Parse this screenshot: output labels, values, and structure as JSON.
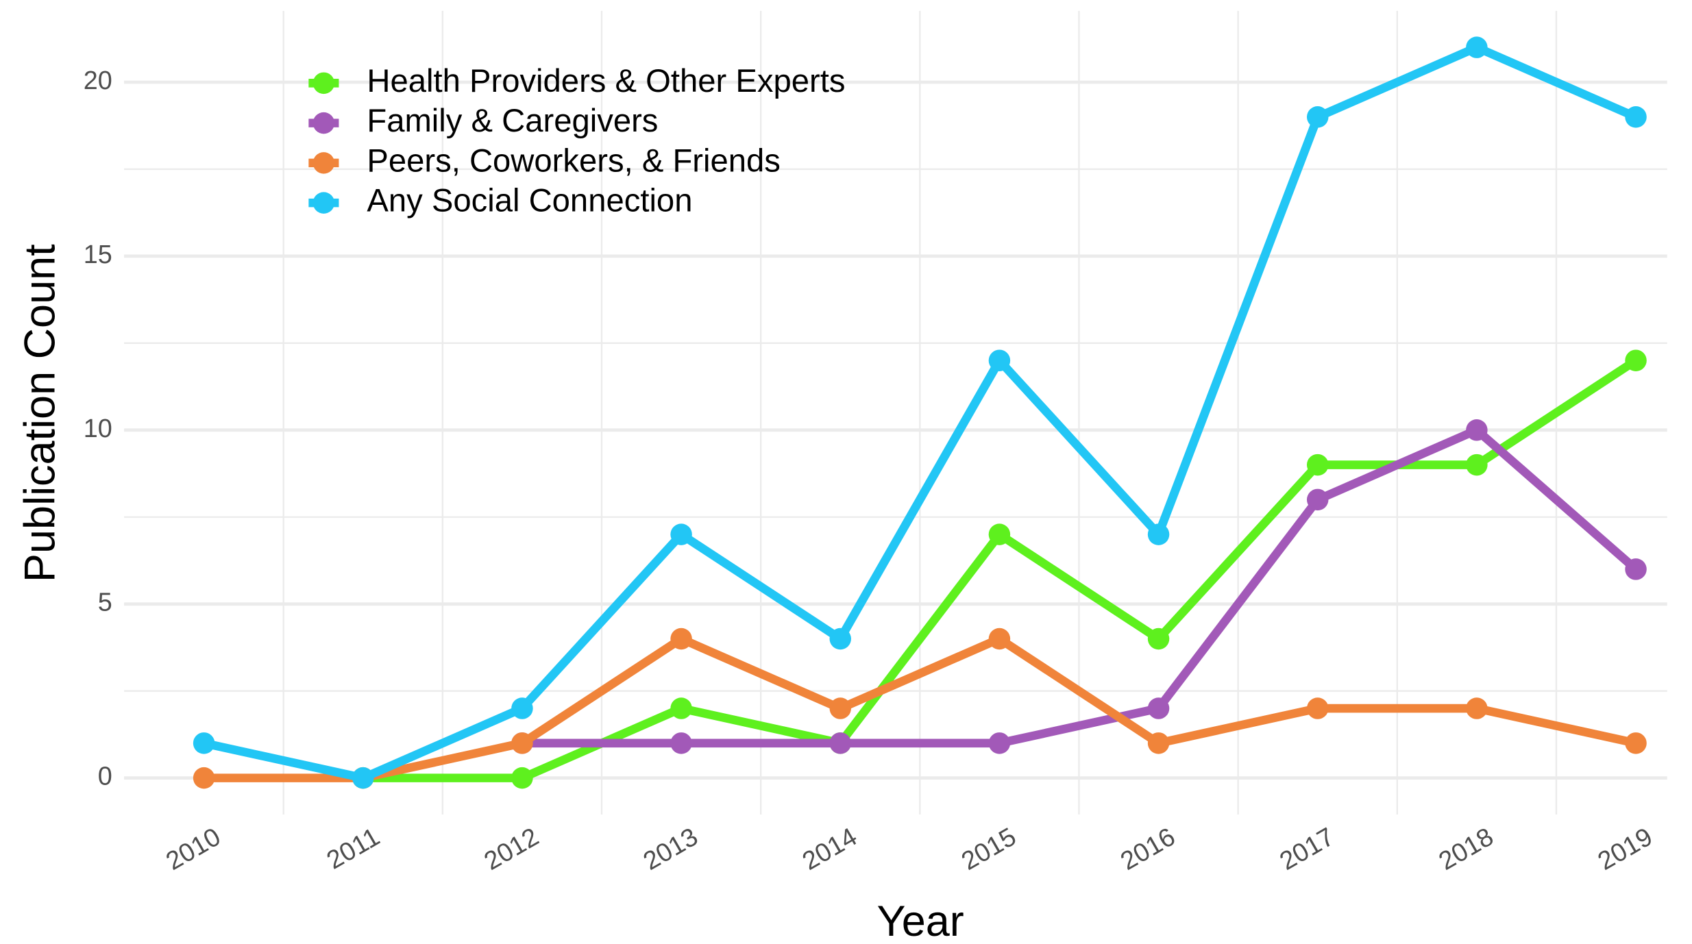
{
  "chart_data": {
    "type": "line",
    "x_label": "Year",
    "y_label": "Publication Count",
    "categories": [
      "2010",
      "2011",
      "2012",
      "2013",
      "2014",
      "2015",
      "2016",
      "2017",
      "2018",
      "2019"
    ],
    "series": [
      {
        "name": "Health Providers & Other Experts",
        "color": "#5ef01e",
        "values": [
          null,
          0,
          0,
          2,
          1,
          7,
          4,
          9,
          9,
          12
        ]
      },
      {
        "name": "Family & Caregivers",
        "color": "#a259b8",
        "values": [
          null,
          null,
          1,
          1,
          1,
          1,
          2,
          8,
          10,
          6
        ]
      },
      {
        "name": "Peers, Coworkers, & Friends",
        "color": "#f0843a",
        "values": [
          0,
          0,
          1,
          4,
          2,
          4,
          1,
          2,
          2,
          1
        ]
      },
      {
        "name": "Any Social Connection",
        "color": "#22c6f5",
        "values": [
          1,
          0,
          2,
          7,
          4,
          12,
          7,
          19,
          21,
          19
        ]
      }
    ],
    "ylim": [
      -1.05,
      22.05
    ],
    "yticks": [
      0,
      5,
      10,
      15,
      20
    ],
    "grid": true,
    "legend": "top-left"
  }
}
